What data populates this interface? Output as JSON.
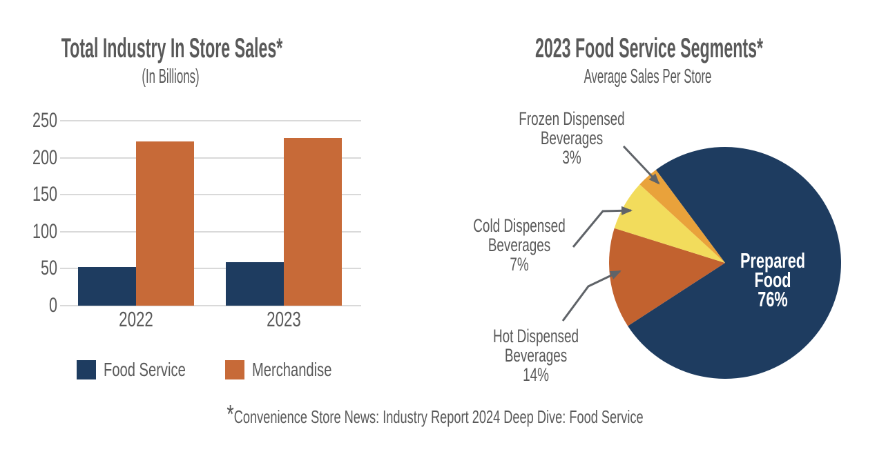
{
  "chart_data": [
    {
      "type": "bar",
      "title": "Total Industry In Store Sales*",
      "subtitle": "(In Billions)",
      "categories": [
        "2022",
        "2023"
      ],
      "series": [
        {
          "name": "Food Service",
          "color": "#1e3c60",
          "values": [
            52,
            59
          ]
        },
        {
          "name": "Merchandise",
          "color": "#c76a38",
          "values": [
            222,
            227
          ]
        }
      ],
      "ylim": [
        0,
        250
      ],
      "yticks": [
        0,
        50,
        100,
        150,
        200,
        250
      ],
      "grid": true,
      "legend_position": "bottom"
    },
    {
      "type": "pie",
      "title": "2023 Food Service Segments*",
      "subtitle": "Average Sales Per Store",
      "start_angle_deg": 323.4,
      "direction": "clockwise",
      "slices": [
        {
          "label": "Prepared Food",
          "pct": 76,
          "color": "#1e3c60",
          "label_position": "inside"
        },
        {
          "label": "Hot Dispensed Beverages",
          "pct": 14,
          "color": "#c2622f",
          "label_position": "callout"
        },
        {
          "label": "Cold Dispensed Beverages",
          "pct": 7,
          "color": "#f2dc5c",
          "label_position": "callout"
        },
        {
          "label": "Frozen Dispensed Beverages",
          "pct": 3,
          "color": "#e9a23b",
          "label_position": "callout"
        }
      ]
    }
  ],
  "footnote": {
    "star": "*",
    "text": "Convenience Store News: Industry Report 2024 Deep Dive: Food Service"
  },
  "style": {
    "text_color": "#595959",
    "grid_color": "#d9d9d9",
    "arrow_color": "#5f6368",
    "background": "#ffffff",
    "inside_label_color": "#ffffff"
  }
}
